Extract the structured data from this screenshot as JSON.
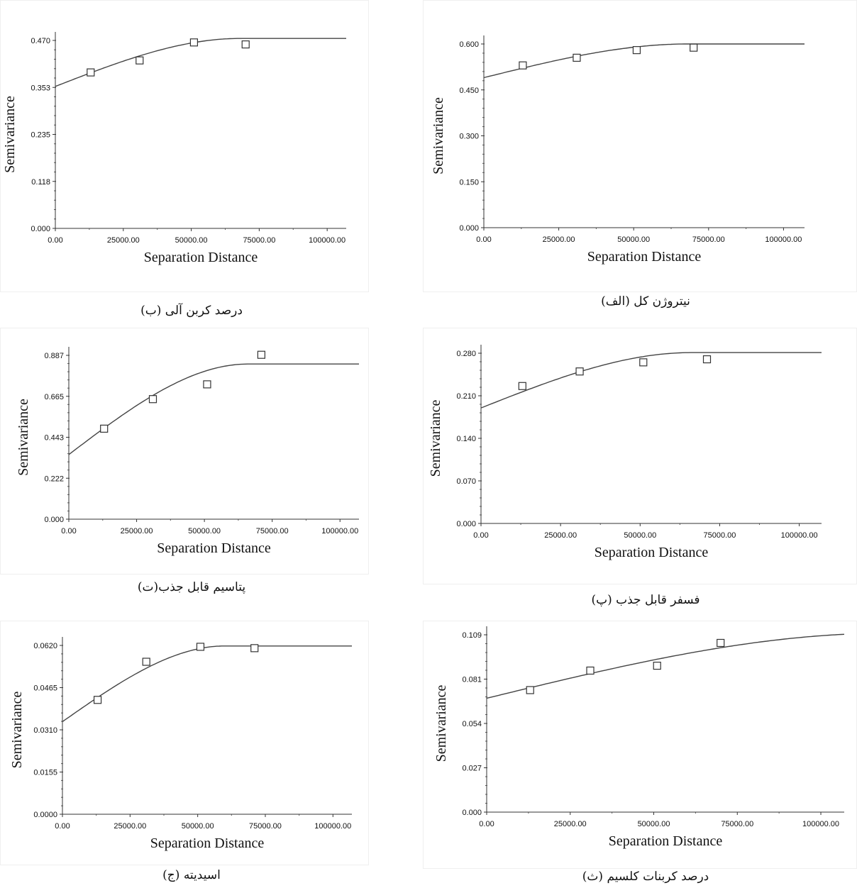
{
  "chart_data": [
    {
      "type": "scatter",
      "caption": "درصد کربن آلی (ب)",
      "xlabel": "Separation Distance",
      "ylabel": "Semivariance",
      "xlim": [
        0,
        107000
      ],
      "ylim": [
        0,
        0.47
      ],
      "x_ticks": [
        "0.00",
        "25000.00",
        "50000.00",
        "75000.00",
        "100000.00"
      ],
      "y_ticks": [
        "0.000",
        "0.118",
        "0.235",
        "0.353",
        "0.470"
      ],
      "points": [
        {
          "x": 13000,
          "y": 0.39
        },
        {
          "x": 31000,
          "y": 0.42
        },
        {
          "x": 51000,
          "y": 0.465
        },
        {
          "x": 70000,
          "y": 0.46
        }
      ],
      "model": {
        "nugget": 0.355,
        "sill": 0.475,
        "range": 68000
      }
    },
    {
      "type": "scatter",
      "caption": "نیتروژن کل (الف)",
      "xlabel": "Separation Distance",
      "ylabel": "Semivariance",
      "xlim": [
        0,
        107000
      ],
      "ylim": [
        0,
        0.6
      ],
      "x_ticks": [
        "0.00",
        "25000.00",
        "50000.00",
        "75000.00",
        "100000.00"
      ],
      "y_ticks": [
        "0.000",
        "0.150",
        "0.300",
        "0.450",
        "0.600"
      ],
      "points": [
        {
          "x": 13000,
          "y": 0.53
        },
        {
          "x": 31000,
          "y": 0.555
        },
        {
          "x": 51000,
          "y": 0.58
        },
        {
          "x": 70000,
          "y": 0.588
        }
      ],
      "model": {
        "nugget": 0.49,
        "sill": 0.6,
        "range": 68000
      }
    },
    {
      "type": "scatter",
      "caption": "پتاسیم قابل جذب(ت)",
      "xlabel": "Separation Distance",
      "ylabel": "Semivariance",
      "xlim": [
        0,
        107000
      ],
      "ylim": [
        0,
        0.887
      ],
      "x_ticks": [
        "0.00",
        "25000.00",
        "50000.00",
        "75000.00",
        "100000.00"
      ],
      "y_ticks": [
        "0.000",
        "0.222",
        "0.443",
        "0.665",
        "0.887"
      ],
      "points": [
        {
          "x": 13000,
          "y": 0.49
        },
        {
          "x": 31000,
          "y": 0.65
        },
        {
          "x": 51000,
          "y": 0.73
        },
        {
          "x": 71000,
          "y": 0.89
        }
      ],
      "model": {
        "nugget": 0.35,
        "sill": 0.84,
        "range": 66000
      }
    },
    {
      "type": "scatter",
      "caption": "فسفر قابل جذب (پ)",
      "xlabel": "Separation Distance",
      "ylabel": "Semivariance",
      "xlim": [
        0,
        107000
      ],
      "ylim": [
        0,
        0.28
      ],
      "x_ticks": [
        "0.00",
        "25000.00",
        "50000.00",
        "75000.00",
        "100000.00"
      ],
      "y_ticks": [
        "0.000",
        "0.070",
        "0.140",
        "0.210",
        "0.280"
      ],
      "points": [
        {
          "x": 13000,
          "y": 0.226
        },
        {
          "x": 31000,
          "y": 0.25
        },
        {
          "x": 51000,
          "y": 0.265
        },
        {
          "x": 71000,
          "y": 0.27
        }
      ],
      "model": {
        "nugget": 0.19,
        "sill": 0.281,
        "range": 66000
      }
    },
    {
      "type": "scatter",
      "caption": "اسیدیته (ج)",
      "xlabel": "Separation Distance",
      "ylabel": "Semivariance",
      "xlim": [
        0,
        107000
      ],
      "ylim": [
        0,
        0.062
      ],
      "x_ticks": [
        "0.00",
        "25000.00",
        "50000.00",
        "75000.00",
        "100000.00"
      ],
      "y_ticks": [
        "0.0000",
        "0.0155",
        "0.0310",
        "0.0465",
        "0.0620"
      ],
      "points": [
        {
          "x": 13000,
          "y": 0.042
        },
        {
          "x": 31000,
          "y": 0.056
        },
        {
          "x": 51000,
          "y": 0.0615
        },
        {
          "x": 71000,
          "y": 0.061
        }
      ],
      "model": {
        "nugget": 0.034,
        "sill": 0.0618,
        "range": 60000
      }
    },
    {
      "type": "scatter",
      "caption": "درصد کربنات کلسیم (ث)",
      "xlabel": "Separation Distance",
      "ylabel": "Semivariance",
      "xlim": [
        0,
        107000
      ],
      "ylim": [
        0,
        0.109
      ],
      "x_ticks": [
        "0.00",
        "25000.00",
        "50000.00",
        "75000.00",
        "100000.00"
      ],
      "y_ticks": [
        "0.000",
        "0.027",
        "0.054",
        "0.081",
        "0.109"
      ],
      "points": [
        {
          "x": 13000,
          "y": 0.075
        },
        {
          "x": 31000,
          "y": 0.087
        },
        {
          "x": 51000,
          "y": 0.09
        },
        {
          "x": 70000,
          "y": 0.104
        }
      ],
      "model": {
        "nugget": 0.07,
        "sill": 0.11,
        "range": 120000
      }
    }
  ]
}
